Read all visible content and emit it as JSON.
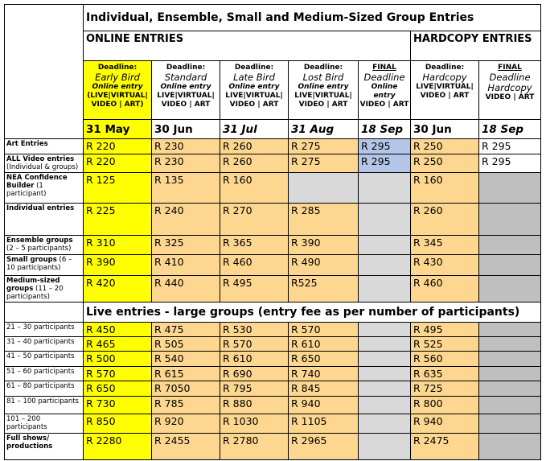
{
  "header": {
    "title": "Individual, Ensemble, Small and Medium-Sized Group Entries"
  },
  "sections": [
    "ONLINE ENTRIES",
    "HARDCOPY ENTRIES"
  ],
  "columns": [
    {
      "label": "Deadline:",
      "name": "Early Bird",
      "entry": "Online entry",
      "formats": "(LIVE|VIRTUAL| VIDEO | ART)",
      "date": "31 May"
    },
    {
      "label": "Deadline:",
      "name": "Standard",
      "entry": "Online entry",
      "formats": "LIVE|VIRTUAL| VIDEO | ART",
      "date": "30 Jun"
    },
    {
      "label": "Deadline:",
      "name": "Late Bird",
      "entry": "Online entry",
      "formats": "LIVE|VIRTUAL| VIDEO | ART",
      "date": "31 Jul"
    },
    {
      "label": "Deadline:",
      "name": "Lost Bird",
      "entry": "Online entry",
      "formats": "LIVE|VIRTUAL| VIDEO | ART",
      "date": "31 Aug"
    },
    {
      "label": "FINAL",
      "name": "Deadline",
      "entry": "Online entry",
      "formats": "VIDEO | ART",
      "date": "18 Sep"
    },
    {
      "label": "Deadline:",
      "name": "Hardcopy",
      "formats": "LIVE|VIRTUAL| VIDEO | ART",
      "date": "30 Jun"
    },
    {
      "label": "FINAL",
      "name": "Deadline Hardcopy",
      "formats": "VIDEO | ART",
      "date": "18 Sep"
    }
  ],
  "rows": [
    {
      "label": "Art Entries",
      "cells": [
        "R 220",
        "R 230",
        "R 260",
        "R 275",
        "R 295",
        "R 250",
        "R 295"
      ]
    },
    {
      "label": "ALL Video entries",
      "note": "(Individual & groups)",
      "cells": [
        "R 220",
        "R 230",
        "R 260",
        "R 275",
        "R 295",
        "R 250",
        "R 295"
      ]
    },
    {
      "label": "NEA Confidence Builder",
      "note": "(1 participant)",
      "cells": [
        "R 125",
        "R 135",
        "R 160",
        null,
        null,
        "R 160",
        null
      ]
    },
    {
      "label": "Individual entries",
      "cells": [
        "R 225",
        "R 240",
        "R 270",
        "R 285",
        null,
        "R 260",
        null
      ]
    },
    {
      "label": "Ensemble groups",
      "note": "(2 – 5 participants)",
      "cells": [
        "R 310",
        "R 325",
        "R 365",
        "R 390",
        null,
        "R 345",
        null
      ]
    },
    {
      "label": "Small groups",
      "note": "(6 – 10 participants)",
      "cells": [
        "R 390",
        "R 410",
        "R 460",
        "R 490",
        null,
        "R 430",
        null
      ]
    },
    {
      "label": "Medium-sized groups",
      "note": "(11 – 20 participants)",
      "cells": [
        "R 420",
        "R 440",
        "R 495",
        "R525",
        null,
        "R 460",
        null
      ]
    }
  ],
  "live": {
    "title": "Live entries - large groups (entry fee as per number of participants)",
    "rows": [
      {
        "label": "21 – 30 participants",
        "cells": [
          "R 450",
          "R 475",
          "R 530",
          "R 570",
          null,
          "R 495",
          null
        ]
      },
      {
        "label": "31 – 40 participants",
        "cells": [
          "R 465",
          "R 505",
          "R 570",
          "R 610",
          null,
          "R 525",
          null
        ]
      },
      {
        "label": "41 – 50 participants",
        "cells": [
          "R 500",
          "R 540",
          "R 610",
          "R 650",
          null,
          "R 560",
          null
        ]
      },
      {
        "label": "51 – 60 participants",
        "cells": [
          "R 570",
          "R 615",
          "R 690",
          "R 740",
          null,
          "R 635",
          null
        ]
      },
      {
        "label": "61 – 80 participants",
        "cells": [
          "R 650",
          "R 7050",
          "R 795",
          "R 845",
          null,
          "R 725",
          null
        ]
      },
      {
        "label": "81 – 100 participants",
        "cells": [
          "R 730",
          "R 785",
          "R 880",
          "R 940",
          null,
          "R 800",
          null
        ]
      },
      {
        "label": "101 – 200 participants",
        "cells": [
          "R 850",
          "R 920",
          "R 1030",
          "R 1105",
          null,
          "R 940",
          null
        ]
      },
      {
        "label": "Full shows/ productions",
        "cells": [
          "R 2280",
          "R 2455",
          "R 2780",
          "R 2965",
          null,
          "R 2475",
          null
        ]
      }
    ]
  }
}
